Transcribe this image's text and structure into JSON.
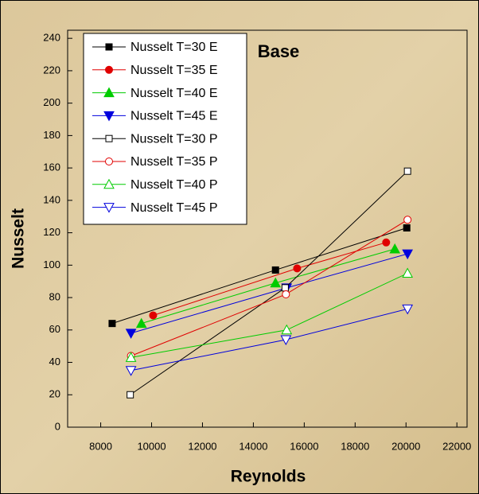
{
  "chart_data": {
    "type": "line",
    "title": "Base",
    "xlabel": "Reynolds",
    "ylabel": "Nusselt",
    "xlim": [
      6700,
      22400
    ],
    "ylim": [
      0,
      245
    ],
    "xticks": [
      8000,
      10000,
      12000,
      14000,
      16000,
      18000,
      20000,
      22000
    ],
    "yticks": [
      0,
      20,
      40,
      60,
      80,
      100,
      120,
      140,
      160,
      180,
      200,
      220,
      240
    ],
    "legend": "upper left",
    "series": [
      {
        "name": "Nusselt T=30 E",
        "color": "#000000",
        "marker": "square",
        "filled": true,
        "x": [
          8450,
          14870,
          20030
        ],
        "values": [
          64,
          97,
          123
        ]
      },
      {
        "name": "Nusselt T=35 E",
        "color": "#e00000",
        "marker": "circle",
        "filled": true,
        "x": [
          10060,
          15720,
          19220
        ],
        "values": [
          69,
          98,
          114
        ]
      },
      {
        "name": "Nusselt T=40 E",
        "color": "#00cc00",
        "marker": "triangle-up",
        "filled": true,
        "x": [
          9600,
          14870,
          19560
        ],
        "values": [
          64,
          89,
          110
        ]
      },
      {
        "name": "Nusselt T=45 E",
        "color": "#0000dd",
        "marker": "triangle-down",
        "filled": true,
        "x": [
          9190,
          15310,
          20060
        ],
        "values": [
          58,
          86,
          107
        ]
      },
      {
        "name": "Nusselt T=30 P",
        "color": "#000000",
        "marker": "square",
        "filled": false,
        "x": [
          9160,
          15250,
          20060
        ],
        "values": [
          20,
          86,
          158
        ]
      },
      {
        "name": "Nusselt T=35 P",
        "color": "#e00000",
        "marker": "circle",
        "filled": false,
        "x": [
          9190,
          15280,
          20060
        ],
        "values": [
          44,
          82,
          128
        ]
      },
      {
        "name": "Nusselt T=40 P",
        "color": "#00cc00",
        "marker": "triangle-up",
        "filled": false,
        "x": [
          9190,
          15310,
          20060
        ],
        "values": [
          43,
          60,
          95
        ]
      },
      {
        "name": "Nusselt T=45 P",
        "color": "#0000dd",
        "marker": "triangle-down",
        "filled": false,
        "x": [
          9190,
          15280,
          20060
        ],
        "values": [
          35,
          54,
          73
        ]
      }
    ]
  }
}
